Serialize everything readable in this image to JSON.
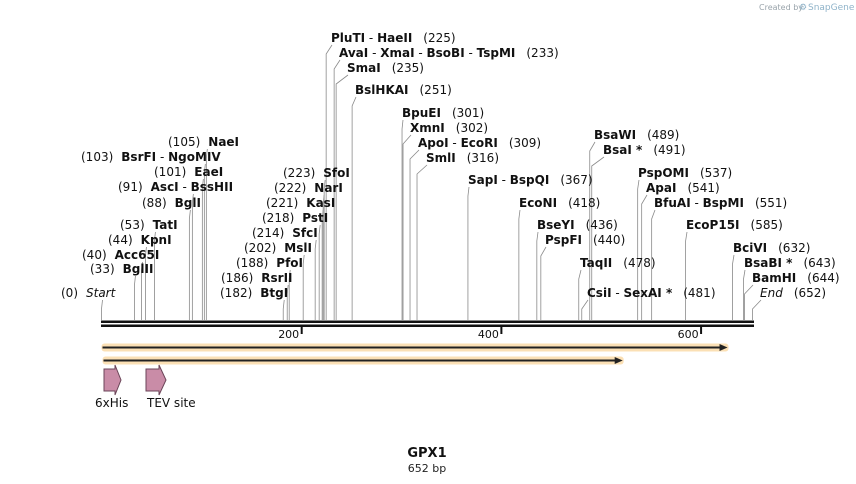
{
  "credit": {
    "text": "Created by",
    "brand": "SnapGene"
  },
  "construct": {
    "name": "GPX1",
    "length_label": "652 bp",
    "length_bp": 652
  },
  "axis": {
    "ticks": [
      200,
      400,
      600
    ],
    "tick_labels": [
      "200",
      "400",
      "600"
    ]
  },
  "sites": [
    {
      "pos": 0,
      "parts": [
        {
          "t": "Start",
          "s": "it"
        }
      ],
      "pos_label": "(0)"
    },
    {
      "pos": 33,
      "parts": [
        {
          "t": "BglII",
          "s": "nm"
        }
      ],
      "pos_label": "(33)"
    },
    {
      "pos": 40,
      "parts": [
        {
          "t": "Acc65I",
          "s": "nm"
        }
      ],
      "pos_label": "(40)"
    },
    {
      "pos": 44,
      "parts": [
        {
          "t": "KpnI",
          "s": "nm"
        }
      ],
      "pos_label": "(44)"
    },
    {
      "pos": 53,
      "parts": [
        {
          "t": "TatI",
          "s": "nm"
        }
      ],
      "pos_label": "(53)"
    },
    {
      "pos": 88,
      "parts": [
        {
          "t": "BglI",
          "s": "nm"
        }
      ],
      "pos_label": "(88)"
    },
    {
      "pos": 91,
      "parts": [
        {
          "t": "AscI",
          "s": "nm"
        },
        {
          "t": "  -  ",
          "s": "sep"
        },
        {
          "t": "BssHII",
          "s": "nm"
        }
      ],
      "pos_label": "(91)"
    },
    {
      "pos": 101,
      "parts": [
        {
          "t": "EaeI",
          "s": "nm"
        }
      ],
      "pos_label": "(101)"
    },
    {
      "pos": 103,
      "parts": [
        {
          "t": "BsrFI",
          "s": "nm"
        },
        {
          "t": "  -  ",
          "s": "sep"
        },
        {
          "t": "NgoMIV",
          "s": "nm"
        }
      ],
      "pos_label": "(103)"
    },
    {
      "pos": 105,
      "parts": [
        {
          "t": "NaeI",
          "s": "nm"
        }
      ],
      "pos_label": "(105)"
    },
    {
      "pos": 182,
      "parts": [
        {
          "t": "BtgI",
          "s": "nm"
        }
      ],
      "pos_label": "(182)"
    },
    {
      "pos": 186,
      "parts": [
        {
          "t": "RsrII",
          "s": "nm"
        }
      ],
      "pos_label": "(186)"
    },
    {
      "pos": 188,
      "parts": [
        {
          "t": "PfoI",
          "s": "nm"
        }
      ],
      "pos_label": "(188)"
    },
    {
      "pos": 202,
      "parts": [
        {
          "t": "MslI",
          "s": "nm"
        }
      ],
      "pos_label": "(202)"
    },
    {
      "pos": 214,
      "parts": [
        {
          "t": "SfcI",
          "s": "nm"
        }
      ],
      "pos_label": "(214)"
    },
    {
      "pos": 218,
      "parts": [
        {
          "t": "PstI",
          "s": "nm"
        }
      ],
      "pos_label": "(218)"
    },
    {
      "pos": 221,
      "parts": [
        {
          "t": "KasI",
          "s": "nm"
        }
      ],
      "pos_label": "(221)"
    },
    {
      "pos": 222,
      "parts": [
        {
          "t": "NarI",
          "s": "nm"
        }
      ],
      "pos_label": "(222)"
    },
    {
      "pos": 223,
      "parts": [
        {
          "t": "SfoI",
          "s": "nm"
        }
      ],
      "pos_label": "(223)"
    },
    {
      "pos": 225,
      "parts": [
        {
          "t": "PluTI",
          "s": "nm"
        },
        {
          "t": "  -  ",
          "s": "sep"
        },
        {
          "t": "HaeII",
          "s": "nm"
        }
      ],
      "pos_label": "(225)"
    },
    {
      "pos": 233,
      "parts": [
        {
          "t": "AvaI",
          "s": "nm"
        },
        {
          "t": "  -  ",
          "s": "sep"
        },
        {
          "t": "XmaI",
          "s": "nm"
        },
        {
          "t": "  -  ",
          "s": "sep"
        },
        {
          "t": "BsoBI",
          "s": "nm"
        },
        {
          "t": "  -  ",
          "s": "sep"
        },
        {
          "t": "TspMI",
          "s": "nm"
        }
      ],
      "pos_label": "(233)"
    },
    {
      "pos": 235,
      "parts": [
        {
          "t": "SmaI",
          "s": "nm"
        }
      ],
      "pos_label": "(235)"
    },
    {
      "pos": 251,
      "parts": [
        {
          "t": "BslHKAI",
          "s": "nm"
        }
      ],
      "pos_label": "(251)"
    },
    {
      "pos": 301,
      "parts": [
        {
          "t": "BpuEI",
          "s": "nm"
        }
      ],
      "pos_label": "(301)"
    },
    {
      "pos": 302,
      "parts": [
        {
          "t": "XmnI",
          "s": "nm"
        }
      ],
      "pos_label": "(302)"
    },
    {
      "pos": 309,
      "parts": [
        {
          "t": "ApoI",
          "s": "nm"
        },
        {
          "t": "  -  ",
          "s": "sep"
        },
        {
          "t": "EcoRI",
          "s": "nm"
        }
      ],
      "pos_label": "(309)"
    },
    {
      "pos": 316,
      "parts": [
        {
          "t": "SmlI",
          "s": "nm"
        }
      ],
      "pos_label": "(316)"
    },
    {
      "pos": 367,
      "parts": [
        {
          "t": "SapI",
          "s": "nm"
        },
        {
          "t": "  -  ",
          "s": "sep"
        },
        {
          "t": "BspQI",
          "s": "nm"
        }
      ],
      "pos_label": "(367)"
    },
    {
      "pos": 418,
      "parts": [
        {
          "t": "EcoNI",
          "s": "nm"
        }
      ],
      "pos_label": "(418)"
    },
    {
      "pos": 436,
      "parts": [
        {
          "t": "BseYI",
          "s": "nm"
        }
      ],
      "pos_label": "(436)"
    },
    {
      "pos": 440,
      "parts": [
        {
          "t": "PspFI",
          "s": "nm"
        }
      ],
      "pos_label": "(440)"
    },
    {
      "pos": 478,
      "parts": [
        {
          "t": "TaqII",
          "s": "nm"
        }
      ],
      "pos_label": "(478)"
    },
    {
      "pos": 481,
      "parts": [
        {
          "t": "CsiI",
          "s": "nm"
        },
        {
          "t": "  -  ",
          "s": "sep"
        },
        {
          "t": "SexAI *",
          "s": "nm"
        }
      ],
      "pos_label": "(481)"
    },
    {
      "pos": 489,
      "parts": [
        {
          "t": "BsaWI",
          "s": "nm"
        }
      ],
      "pos_label": "(489)"
    },
    {
      "pos": 491,
      "parts": [
        {
          "t": "BsaI *",
          "s": "nm"
        }
      ],
      "pos_label": "(491)"
    },
    {
      "pos": 537,
      "parts": [
        {
          "t": "PspOMI",
          "s": "nm"
        }
      ],
      "pos_label": "(537)"
    },
    {
      "pos": 541,
      "parts": [
        {
          "t": "ApaI",
          "s": "nm"
        }
      ],
      "pos_label": "(541)"
    },
    {
      "pos": 551,
      "parts": [
        {
          "t": "BfuAI",
          "s": "nm"
        },
        {
          "t": "  -  ",
          "s": "sep"
        },
        {
          "t": "BspMI",
          "s": "nm"
        }
      ],
      "pos_label": "(551)"
    },
    {
      "pos": 585,
      "parts": [
        {
          "t": "EcoP15I",
          "s": "nm"
        }
      ],
      "pos_label": "(585)"
    },
    {
      "pos": 632,
      "parts": [
        {
          "t": "BciVI",
          "s": "nm"
        }
      ],
      "pos_label": "(632)"
    },
    {
      "pos": 643,
      "parts": [
        {
          "t": "BsaBI *",
          "s": "nm"
        }
      ],
      "pos_label": "(643)"
    },
    {
      "pos": 644,
      "parts": [
        {
          "t": "BamHI",
          "s": "nm"
        }
      ],
      "pos_label": "(644)"
    },
    {
      "pos": 652,
      "parts": [
        {
          "t": "End",
          "s": "it"
        }
      ],
      "pos_label": "(652)"
    }
  ],
  "orf_arrows": [
    {
      "start": 1,
      "end": 627,
      "color": "#f4a52a"
    },
    {
      "start": 2,
      "end": 522,
      "color": "#f4a52a"
    }
  ],
  "features": [
    {
      "label": "6xHis",
      "color": "#c98ca7"
    },
    {
      "label": "TEV site",
      "color": "#c98ca7"
    }
  ]
}
